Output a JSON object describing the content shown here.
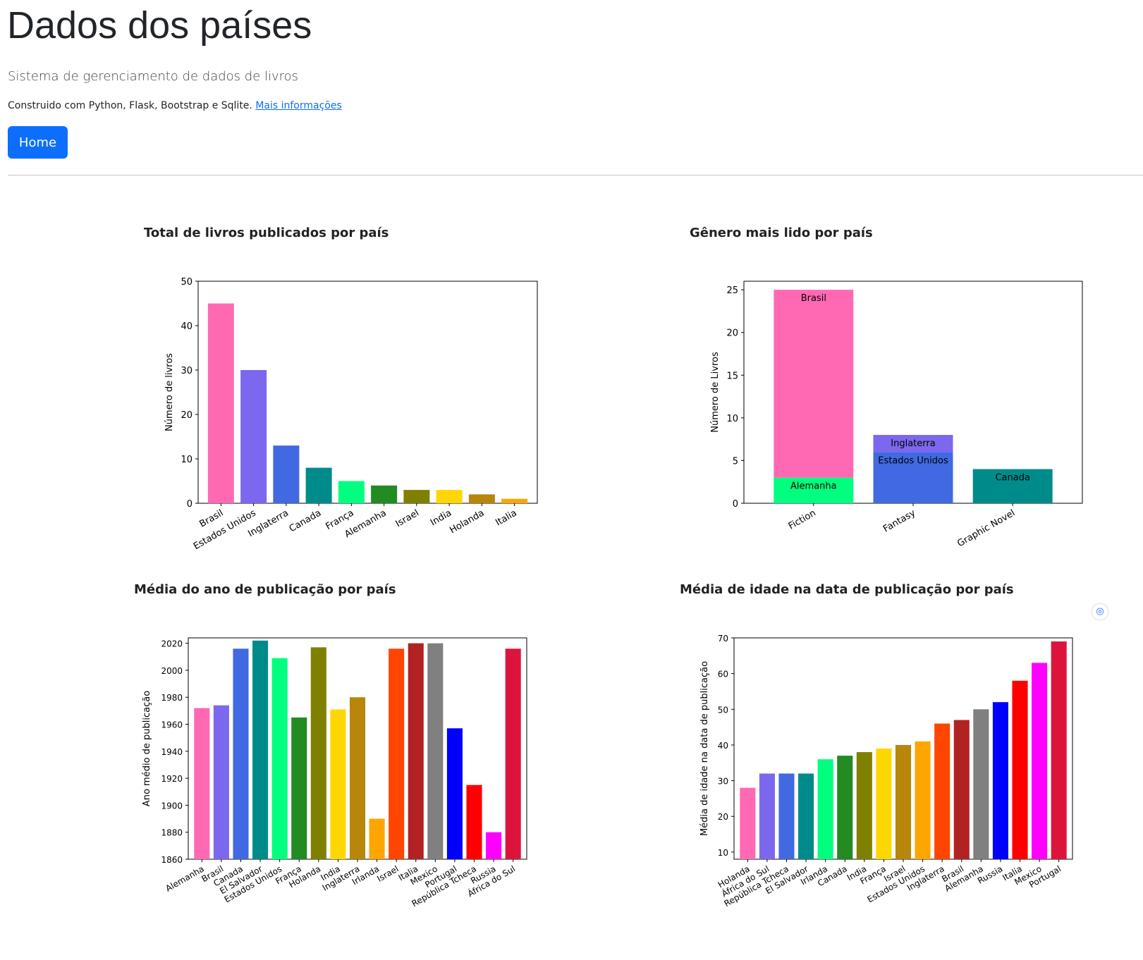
{
  "header": {
    "title": "Dados dos países",
    "lead": "Sistema de gerenciamento de dados de livros",
    "built_with": "Construido com Python, Flask, Bootstrap e Sqlite.",
    "more_info_link": "Mais informações",
    "home_button": "Home"
  },
  "colors": {
    "primary": "#0d6efd"
  },
  "chart_data": [
    {
      "type": "bar",
      "title": "Total de livros publicados por país",
      "xlabel": "",
      "ylabel": "Número de livros",
      "ylim": [
        0,
        50
      ],
      "yticks": [
        0,
        10,
        20,
        30,
        40,
        50
      ],
      "categories": [
        "Brasil",
        "Estados Unidos",
        "Inglaterra",
        "Canada",
        "França",
        "Alemanha",
        "Israel",
        "India",
        "Holanda",
        "Italia"
      ],
      "values": [
        45,
        30,
        13,
        8,
        5,
        4,
        3,
        3,
        2,
        1
      ],
      "colors": [
        "#ff69b4",
        "#7b68ee",
        "#4169e1",
        "#008b8b",
        "#00ff7f",
        "#228b22",
        "#808000",
        "#ffd700",
        "#b8860b",
        "#ffa500"
      ]
    },
    {
      "type": "bar",
      "stacked": true,
      "title": "Gênero mais lido por país",
      "xlabel": "",
      "ylabel": "Número de Livros",
      "ylim": [
        0,
        26
      ],
      "yticks": [
        0,
        5,
        10,
        15,
        20,
        25
      ],
      "categories": [
        "Fiction",
        "Fantasy",
        "Graphic Novel"
      ],
      "segments": [
        {
          "category": "Fiction",
          "label": "Alemanha",
          "value": 3,
          "color": "#00ff7f"
        },
        {
          "category": "Fiction",
          "label": "Brasil",
          "value": 22,
          "color": "#ff69b4"
        },
        {
          "category": "Fantasy",
          "label": "Estados Unidos",
          "value": 6,
          "color": "#4169e1"
        },
        {
          "category": "Fantasy",
          "label": "Inglaterra",
          "value": 2,
          "color": "#7b68ee"
        },
        {
          "category": "Graphic Novel",
          "label": "Canada",
          "value": 4,
          "color": "#008b8b"
        }
      ]
    },
    {
      "type": "bar",
      "title": "Média do ano de publicação por país",
      "xlabel": "",
      "ylabel": "Ano médio de publicação",
      "ylim": [
        1860,
        2024
      ],
      "yticks": [
        1860,
        1880,
        1900,
        1920,
        1940,
        1960,
        1980,
        2000,
        2020
      ],
      "categories": [
        "Alemanha",
        "Brasil",
        "Canada",
        "El Salvador",
        "Estados Unidos",
        "França",
        "Holanda",
        "India",
        "Inglaterra",
        "Irlanda",
        "Israel",
        "Italia",
        "Mexico",
        "Portugal",
        "República Tcheca",
        "Russia",
        "África do Sul"
      ],
      "values": [
        1972,
        1974,
        2016,
        2022,
        2009,
        1965,
        2017,
        1971,
        1980,
        1890,
        2016,
        2020,
        2020,
        1957,
        1915,
        1880,
        2016
      ],
      "colors": [
        "#ff69b4",
        "#7b68ee",
        "#4169e1",
        "#008b8b",
        "#00ff7f",
        "#228b22",
        "#808000",
        "#ffd700",
        "#b8860b",
        "#ffa500",
        "#ff4500",
        "#b22222",
        "#808080",
        "#0000ff",
        "#ff0000",
        "#ff00ff",
        "#dc143c"
      ]
    },
    {
      "type": "bar",
      "title": "Média de idade na data de publicação por país",
      "xlabel": "",
      "ylabel": "Média de idade na data de publicação",
      "ylim": [
        8,
        70
      ],
      "yticks": [
        10,
        20,
        30,
        40,
        50,
        60,
        70
      ],
      "categories": [
        "Holanda",
        "África do Sul",
        "República Tcheca",
        "El Salvador",
        "Irlanda",
        "Canada",
        "India",
        "França",
        "Israel",
        "Estados Unidos",
        "Inglaterra",
        "Brasil",
        "Alemanha",
        "Russia",
        "Italia",
        "Mexico",
        "Portugal"
      ],
      "values": [
        28,
        32,
        32,
        32,
        36,
        37,
        38,
        39,
        40,
        41,
        46,
        47,
        50,
        52,
        58,
        63,
        69
      ],
      "colors": [
        "#ff69b4",
        "#7b68ee",
        "#4169e1",
        "#008b8b",
        "#00ff7f",
        "#228b22",
        "#808000",
        "#ffd700",
        "#b8860b",
        "#ffa500",
        "#ff4500",
        "#b22222",
        "#808080",
        "#0000ff",
        "#ff0000",
        "#ff00ff",
        "#dc143c"
      ]
    }
  ]
}
